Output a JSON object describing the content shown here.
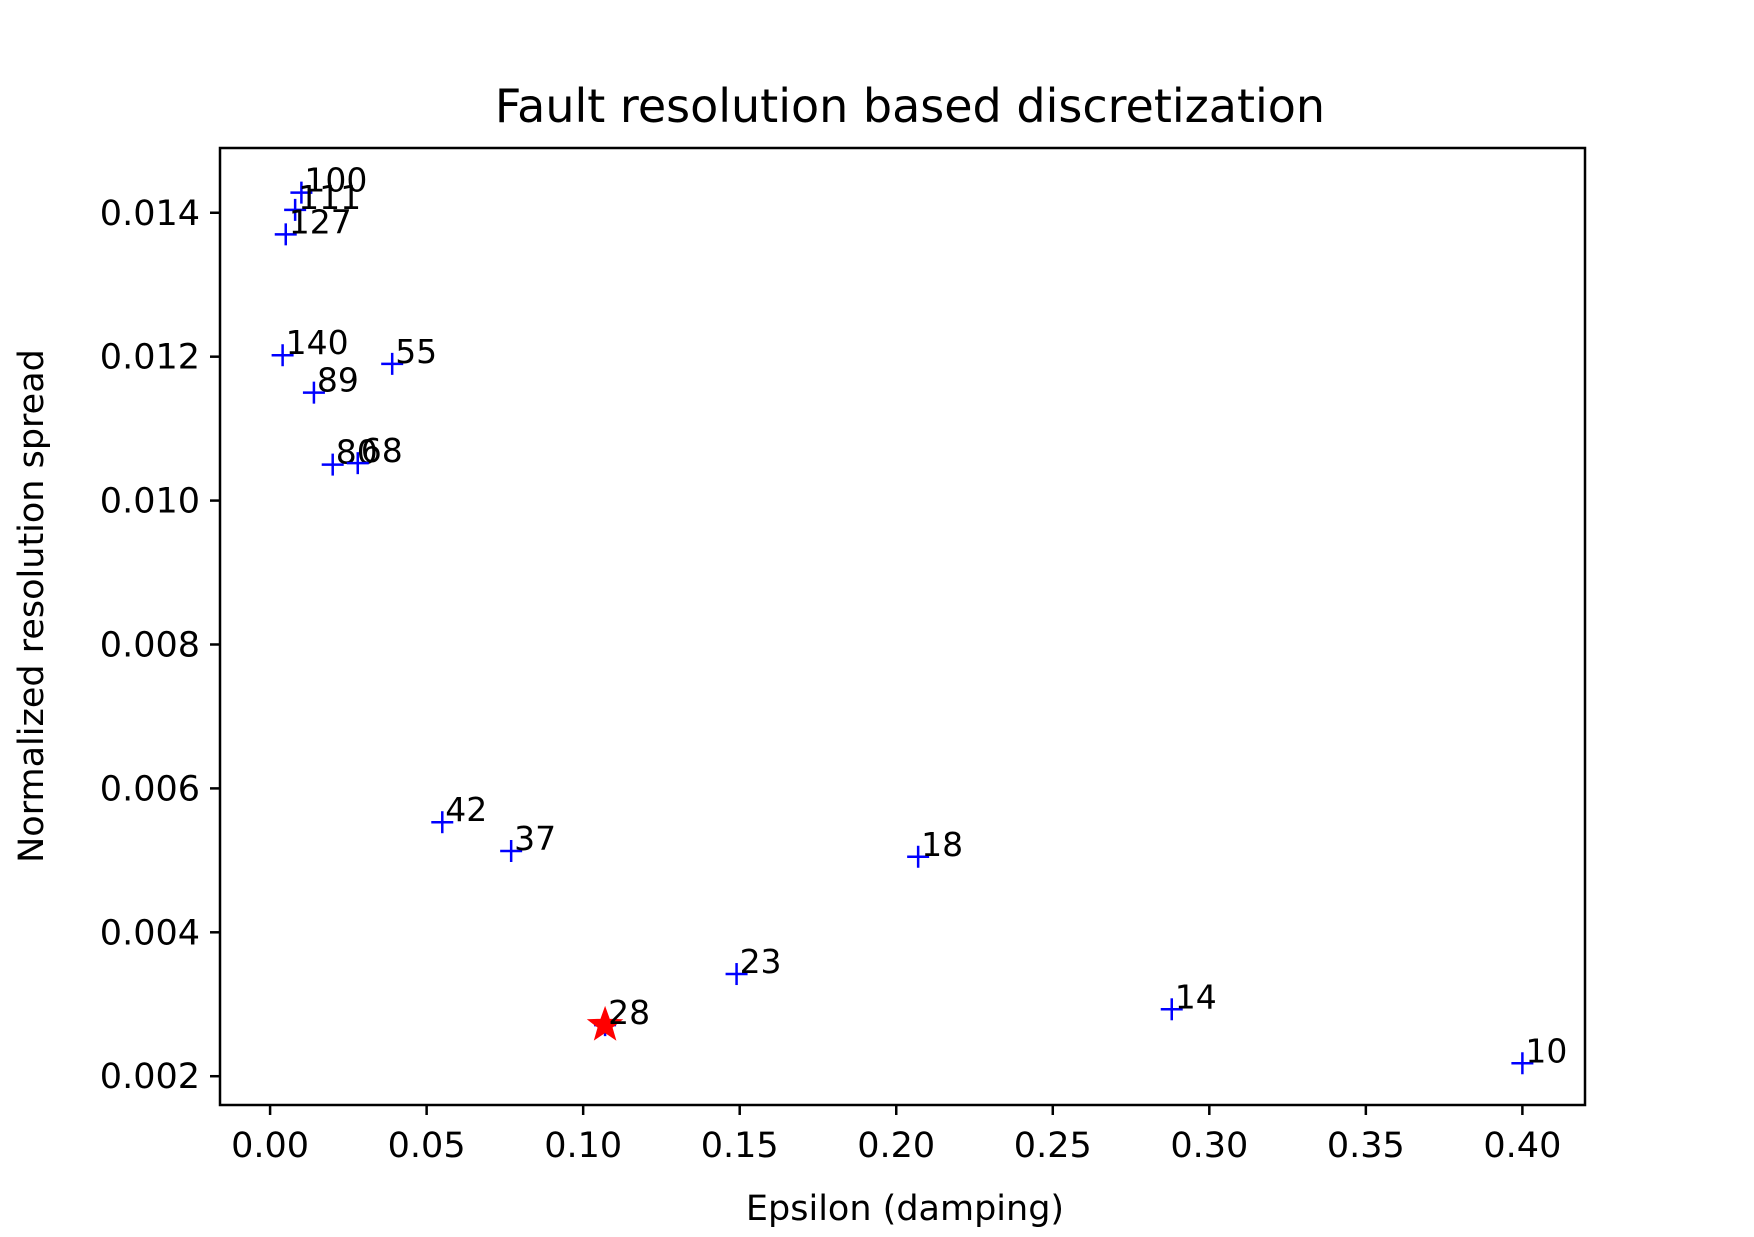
{
  "chart_data": {
    "type": "scatter",
    "title": "Fault resolution based discretization",
    "xlabel": "Epsilon (damping)",
    "ylabel": "Normalized resolution spread",
    "xlim": [
      -0.016,
      0.42
    ],
    "ylim": [
      0.0016,
      0.0149
    ],
    "xticks": [
      0.0,
      0.05,
      0.1,
      0.15,
      0.2,
      0.25,
      0.3,
      0.35,
      0.4
    ],
    "xtick_labels": [
      "0.00",
      "0.05",
      "0.10",
      "0.15",
      "0.20",
      "0.25",
      "0.30",
      "0.35",
      "0.40"
    ],
    "yticks": [
      0.002,
      0.004,
      0.006,
      0.008,
      0.01,
      0.012,
      0.014
    ],
    "ytick_labels": [
      "0.002",
      "0.004",
      "0.006",
      "0.008",
      "0.010",
      "0.012",
      "0.014"
    ],
    "grid": false,
    "legend": "none",
    "marker_color": "#0000ff",
    "highlight_color": "#ff0000",
    "points": [
      {
        "x": 0.01,
        "y": 0.01428,
        "label": "100"
      },
      {
        "x": 0.008,
        "y": 0.01404,
        "label": "111"
      },
      {
        "x": 0.005,
        "y": 0.0137,
        "label": "127"
      },
      {
        "x": 0.004,
        "y": 0.01202,
        "label": "140"
      },
      {
        "x": 0.039,
        "y": 0.0119,
        "label": "55"
      },
      {
        "x": 0.014,
        "y": 0.0115,
        "label": "89"
      },
      {
        "x": 0.02,
        "y": 0.0105,
        "label": "80"
      },
      {
        "x": 0.028,
        "y": 0.01052,
        "label": "68"
      },
      {
        "x": 0.055,
        "y": 0.00553,
        "label": "42"
      },
      {
        "x": 0.077,
        "y": 0.00513,
        "label": "37"
      },
      {
        "x": 0.207,
        "y": 0.00505,
        "label": "18"
      },
      {
        "x": 0.149,
        "y": 0.00342,
        "label": "23"
      },
      {
        "x": 0.107,
        "y": 0.00271,
        "label": "28",
        "highlight": true
      },
      {
        "x": 0.288,
        "y": 0.00293,
        "label": "14"
      },
      {
        "x": 0.4,
        "y": 0.00218,
        "label": "10"
      }
    ]
  }
}
